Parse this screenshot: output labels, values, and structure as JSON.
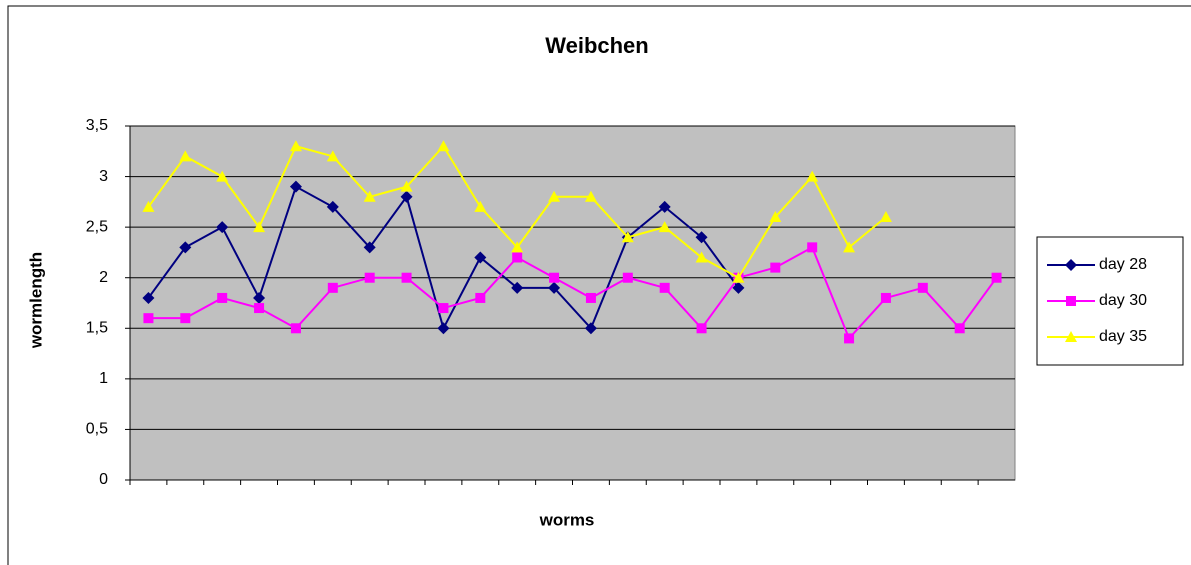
{
  "chart_data": {
    "type": "line",
    "title": "Weibchen",
    "x_label": "worms",
    "y_label": "wormlength",
    "categories": [
      null,
      null,
      null,
      null,
      null,
      null,
      null,
      null,
      null,
      null,
      null,
      null,
      null,
      null,
      null,
      null,
      null,
      null,
      null,
      null,
      null,
      null,
      null,
      null
    ],
    "series": [
      {
        "name": "day 28",
        "color": "#000080",
        "marker": "diamond",
        "values": [
          1.8,
          2.3,
          2.5,
          1.8,
          2.9,
          2.7,
          2.3,
          2.8,
          1.5,
          2.2,
          1.9,
          1.9,
          1.5,
          2.4,
          2.7,
          2.4,
          1.9,
          null,
          null,
          null,
          null,
          null,
          null,
          null
        ]
      },
      {
        "name": "day 30",
        "color": "#ff00ff",
        "marker": "square",
        "values": [
          1.6,
          1.6,
          1.8,
          1.7,
          1.5,
          1.9,
          2.0,
          2.0,
          1.7,
          1.8,
          2.2,
          2.0,
          1.8,
          2.0,
          1.9,
          1.5,
          2.0,
          2.1,
          2.3,
          1.4,
          1.8,
          1.9,
          1.5,
          2.0
        ]
      },
      {
        "name": "day 35",
        "color": "#ffff00",
        "marker": "triangle",
        "values": [
          2.7,
          3.2,
          3.0,
          2.5,
          3.3,
          3.2,
          2.8,
          2.9,
          3.3,
          2.7,
          2.3,
          2.8,
          2.8,
          2.4,
          2.5,
          2.2,
          2.0,
          2.6,
          3.0,
          2.3,
          2.6,
          null,
          null,
          null
        ]
      }
    ],
    "ylim": [
      0,
      3.5
    ],
    "yticks": [
      0,
      {
        "value": 0.5,
        "label": "0,5"
      },
      1,
      {
        "value": 1.5,
        "label": "1,5"
      },
      2,
      {
        "value": 2.5,
        "label": "2,5"
      },
      3,
      {
        "value": 3.5,
        "label": "3,5"
      }
    ],
    "grid": true,
    "legend": "right"
  }
}
